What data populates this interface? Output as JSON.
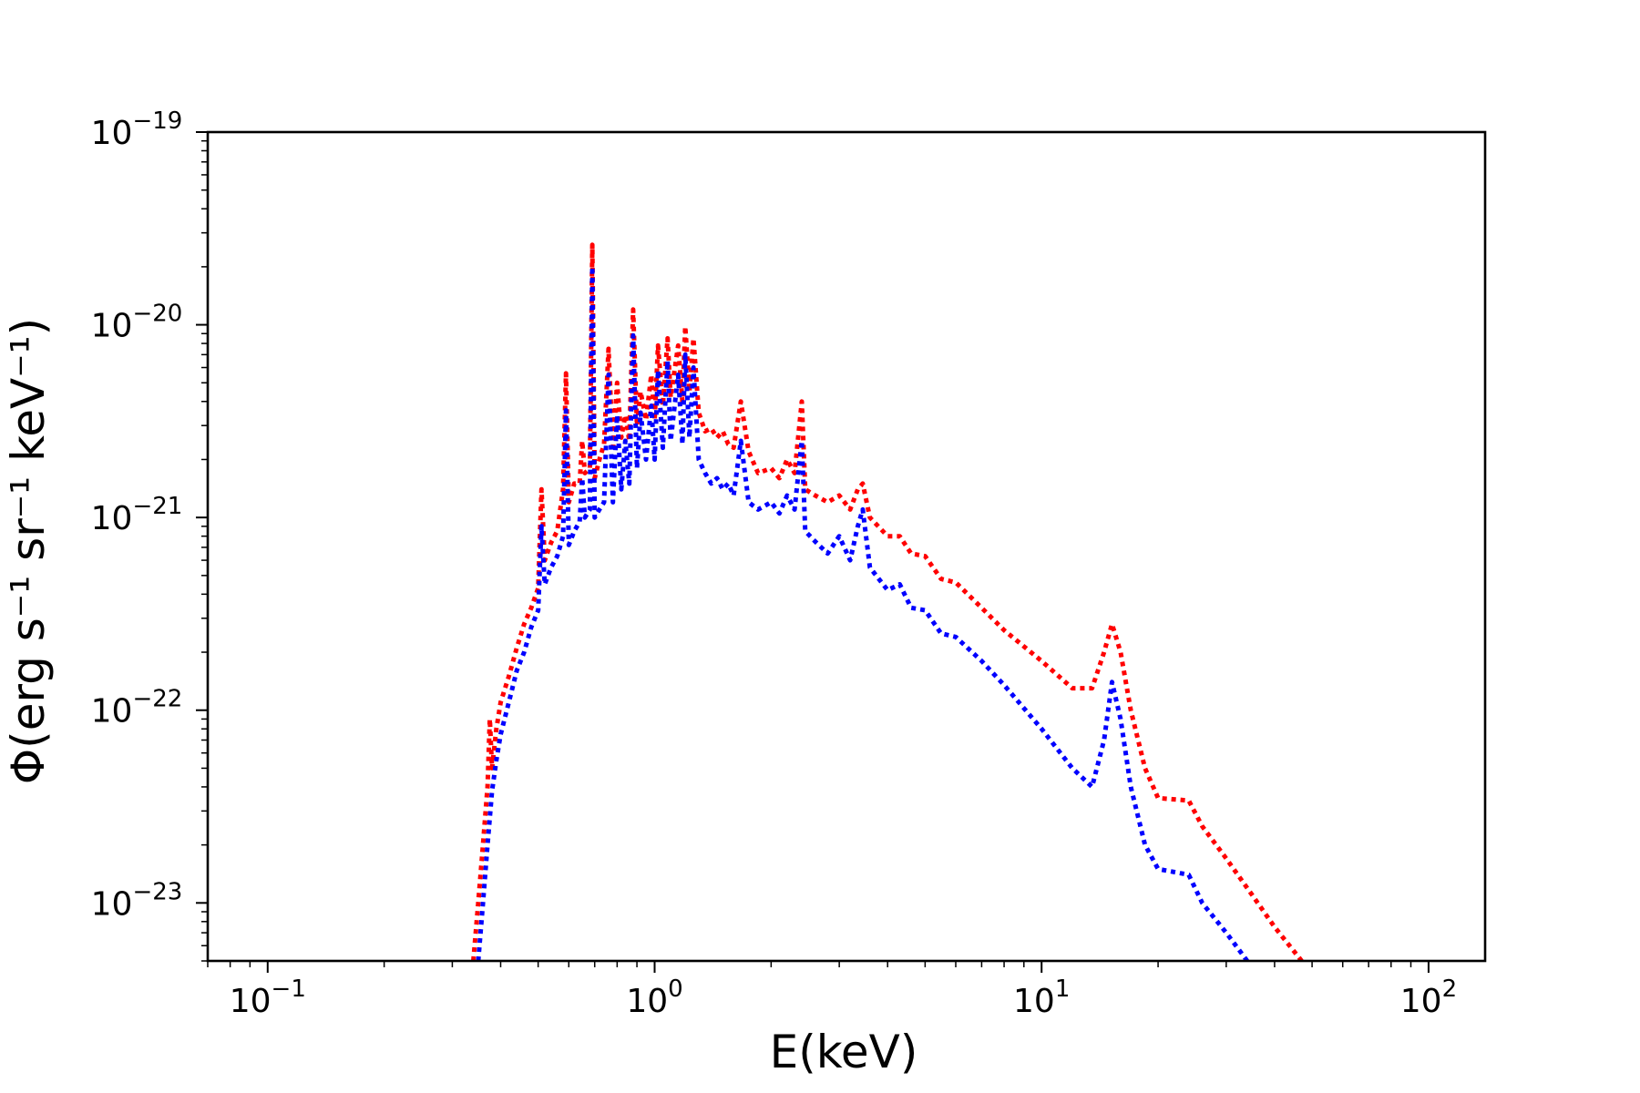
{
  "chart_data": {
    "type": "line",
    "title": "",
    "xlabel": "E(keV)",
    "ylabel": "Φ(erg s⁻¹ sr⁻¹ keV⁻¹)",
    "x_scale": "log",
    "y_scale": "log",
    "xlim": [
      0.07,
      140
    ],
    "ylim": [
      5e-24,
      1e-19
    ],
    "x_ticks": [
      {
        "value": 0.1,
        "base": "10",
        "exp": "−1"
      },
      {
        "value": 1,
        "base": "10",
        "exp": "0"
      },
      {
        "value": 10,
        "base": "10",
        "exp": "1"
      },
      {
        "value": 100,
        "base": "10",
        "exp": "2"
      }
    ],
    "y_ticks": [
      {
        "value": 1e-23,
        "base": "10",
        "exp": "−23"
      },
      {
        "value": 1e-22,
        "base": "10",
        "exp": "−22"
      },
      {
        "value": 1e-21,
        "base": "10",
        "exp": "−21"
      },
      {
        "value": 1e-20,
        "base": "10",
        "exp": "−20"
      },
      {
        "value": 1e-19,
        "base": "10",
        "exp": "−19"
      }
    ],
    "grid": false,
    "legend": "none",
    "line_style": "dotted",
    "series": [
      {
        "color": "#ff0000",
        "points": [
          [
            0.34,
            5e-24
          ],
          [
            0.35,
            1e-23
          ],
          [
            0.36,
            2e-23
          ],
          [
            0.37,
            4e-23
          ],
          [
            0.375,
            9e-23
          ],
          [
            0.38,
            5e-23
          ],
          [
            0.39,
            8e-23
          ],
          [
            0.4,
            1.1e-22
          ],
          [
            0.42,
            1.5e-22
          ],
          [
            0.44,
            2.1e-22
          ],
          [
            0.46,
            2.8e-22
          ],
          [
            0.48,
            3.4e-22
          ],
          [
            0.5,
            4.3e-22
          ],
          [
            0.51,
            1.4e-21
          ],
          [
            0.52,
            6e-22
          ],
          [
            0.54,
            7.4e-22
          ],
          [
            0.56,
            8.5e-22
          ],
          [
            0.58,
            1.4e-21
          ],
          [
            0.59,
            5.6e-21
          ],
          [
            0.6,
            1.2e-21
          ],
          [
            0.62,
            1.5e-21
          ],
          [
            0.64,
            1.5e-21
          ],
          [
            0.65,
            2.5e-21
          ],
          [
            0.66,
            1.7e-21
          ],
          [
            0.68,
            1.8e-21
          ],
          [
            0.69,
            2.6e-20
          ],
          [
            0.7,
            1.6e-21
          ],
          [
            0.72,
            2e-21
          ],
          [
            0.74,
            2.4e-21
          ],
          [
            0.76,
            7.5e-21
          ],
          [
            0.78,
            2.2e-21
          ],
          [
            0.8,
            5e-21
          ],
          [
            0.82,
            2.6e-21
          ],
          [
            0.84,
            3.4e-21
          ],
          [
            0.86,
            2.5e-21
          ],
          [
            0.88,
            1.2e-20
          ],
          [
            0.9,
            3e-21
          ],
          [
            0.92,
            4.5e-21
          ],
          [
            0.95,
            3.2e-21
          ],
          [
            0.98,
            5.5e-21
          ],
          [
            1.0,
            3.2e-21
          ],
          [
            1.02,
            7.8e-21
          ],
          [
            1.05,
            3.8e-21
          ],
          [
            1.08,
            8.5e-21
          ],
          [
            1.1,
            4.2e-21
          ],
          [
            1.15,
            7.8e-21
          ],
          [
            1.18,
            4e-21
          ],
          [
            1.2,
            9.8e-21
          ],
          [
            1.23,
            4.5e-21
          ],
          [
            1.26,
            8.5e-21
          ],
          [
            1.3,
            3.5e-21
          ],
          [
            1.35,
            2.8e-21
          ],
          [
            1.4,
            2.9e-21
          ],
          [
            1.45,
            2.6e-21
          ],
          [
            1.5,
            2.8e-21
          ],
          [
            1.55,
            2.4e-21
          ],
          [
            1.6,
            2.3e-21
          ],
          [
            1.67,
            4e-21
          ],
          [
            1.75,
            2.2e-21
          ],
          [
            1.85,
            1.7e-21
          ],
          [
            2.0,
            1.8e-21
          ],
          [
            2.1,
            1.6e-21
          ],
          [
            2.2,
            2e-21
          ],
          [
            2.3,
            1.7e-21
          ],
          [
            2.4,
            4e-21
          ],
          [
            2.45,
            1.4e-21
          ],
          [
            2.6,
            1.3e-21
          ],
          [
            2.8,
            1.2e-21
          ],
          [
            3.0,
            1.3e-21
          ],
          [
            3.2,
            1.1e-21
          ],
          [
            3.35,
            1.4e-21
          ],
          [
            3.45,
            1.5e-21
          ],
          [
            3.6,
            1e-21
          ],
          [
            4.0,
            8e-22
          ],
          [
            4.3,
            8e-22
          ],
          [
            4.6,
            6.5e-22
          ],
          [
            5.0,
            6.3e-22
          ],
          [
            5.5,
            4.8e-22
          ],
          [
            6.0,
            4.6e-22
          ],
          [
            7.0,
            3.4e-22
          ],
          [
            8.0,
            2.6e-22
          ],
          [
            10.0,
            1.8e-22
          ],
          [
            12.0,
            1.3e-22
          ],
          [
            13.5,
            1.3e-22
          ],
          [
            14.5,
            2e-22
          ],
          [
            15.2,
            2.8e-22
          ],
          [
            16.0,
            2e-22
          ],
          [
            17.0,
            1e-22
          ],
          [
            18.5,
            5e-23
          ],
          [
            20.0,
            3.5e-23
          ],
          [
            24.0,
            3.4e-23
          ],
          [
            26.0,
            2.5e-23
          ],
          [
            30.0,
            1.7e-23
          ],
          [
            35.0,
            1.1e-23
          ],
          [
            40.0,
            7.5e-24
          ],
          [
            47.0,
            5e-24
          ]
        ]
      },
      {
        "color": "#0000ff",
        "points": [
          [
            0.35,
            5e-24
          ],
          [
            0.36,
            1e-23
          ],
          [
            0.37,
            2e-23
          ],
          [
            0.38,
            3.8e-23
          ],
          [
            0.39,
            5.5e-23
          ],
          [
            0.4,
            7.5e-23
          ],
          [
            0.42,
            1.1e-22
          ],
          [
            0.44,
            1.6e-22
          ],
          [
            0.46,
            2e-22
          ],
          [
            0.48,
            2.7e-22
          ],
          [
            0.5,
            3.3e-22
          ],
          [
            0.51,
            9e-22
          ],
          [
            0.52,
            4.5e-22
          ],
          [
            0.54,
            5.5e-22
          ],
          [
            0.56,
            6.3e-22
          ],
          [
            0.58,
            8e-22
          ],
          [
            0.59,
            3.6e-21
          ],
          [
            0.6,
            7.2e-22
          ],
          [
            0.62,
            8.5e-22
          ],
          [
            0.64,
            9.5e-22
          ],
          [
            0.65,
            1.6e-21
          ],
          [
            0.66,
            1e-21
          ],
          [
            0.68,
            1.1e-21
          ],
          [
            0.69,
            2e-20
          ],
          [
            0.7,
            1e-21
          ],
          [
            0.72,
            1.1e-21
          ],
          [
            0.74,
            1.2e-21
          ],
          [
            0.76,
            5.5e-21
          ],
          [
            0.78,
            1.2e-21
          ],
          [
            0.8,
            3.4e-21
          ],
          [
            0.82,
            1.4e-21
          ],
          [
            0.84,
            2.5e-21
          ],
          [
            0.86,
            1.5e-21
          ],
          [
            0.88,
            8.8e-21
          ],
          [
            0.9,
            1.8e-21
          ],
          [
            0.92,
            3.5e-21
          ],
          [
            0.95,
            2e-21
          ],
          [
            0.98,
            3.8e-21
          ],
          [
            1.0,
            2e-21
          ],
          [
            1.02,
            5.8e-21
          ],
          [
            1.05,
            2.3e-21
          ],
          [
            1.08,
            6.5e-21
          ],
          [
            1.1,
            2.5e-21
          ],
          [
            1.15,
            5.5e-21
          ],
          [
            1.18,
            2.4e-21
          ],
          [
            1.2,
            7e-21
          ],
          [
            1.23,
            2.6e-21
          ],
          [
            1.26,
            6e-21
          ],
          [
            1.3,
            2e-21
          ],
          [
            1.35,
            1.7e-21
          ],
          [
            1.4,
            1.5e-21
          ],
          [
            1.45,
            1.6e-21
          ],
          [
            1.5,
            1.4e-21
          ],
          [
            1.55,
            1.5e-21
          ],
          [
            1.6,
            1.3e-21
          ],
          [
            1.67,
            2.5e-21
          ],
          [
            1.75,
            1.2e-21
          ],
          [
            1.85,
            1.1e-21
          ],
          [
            2.0,
            1.2e-21
          ],
          [
            2.1,
            1.05e-21
          ],
          [
            2.2,
            1.3e-21
          ],
          [
            2.3,
            1.1e-21
          ],
          [
            2.4,
            2.5e-21
          ],
          [
            2.45,
            8.5e-22
          ],
          [
            2.6,
            7.5e-22
          ],
          [
            2.8,
            6.5e-22
          ],
          [
            3.0,
            8e-22
          ],
          [
            3.2,
            6e-22
          ],
          [
            3.35,
            9e-22
          ],
          [
            3.45,
            1.1e-21
          ],
          [
            3.6,
            5.5e-22
          ],
          [
            4.0,
            4.2e-22
          ],
          [
            4.3,
            4.5e-22
          ],
          [
            4.6,
            3.4e-22
          ],
          [
            5.0,
            3.3e-22
          ],
          [
            5.5,
            2.5e-22
          ],
          [
            6.0,
            2.4e-22
          ],
          [
            7.0,
            1.8e-22
          ],
          [
            8.0,
            1.35e-22
          ],
          [
            10.0,
            8e-23
          ],
          [
            12.0,
            5e-23
          ],
          [
            13.5,
            4e-23
          ],
          [
            14.5,
            7e-23
          ],
          [
            15.2,
            1.4e-22
          ],
          [
            16.0,
            9e-23
          ],
          [
            17.0,
            4e-23
          ],
          [
            18.5,
            2e-23
          ],
          [
            20.0,
            1.5e-23
          ],
          [
            24.0,
            1.4e-23
          ],
          [
            26.0,
            1e-23
          ],
          [
            30.0,
            7e-24
          ],
          [
            34.0,
            5e-24
          ]
        ]
      }
    ]
  }
}
